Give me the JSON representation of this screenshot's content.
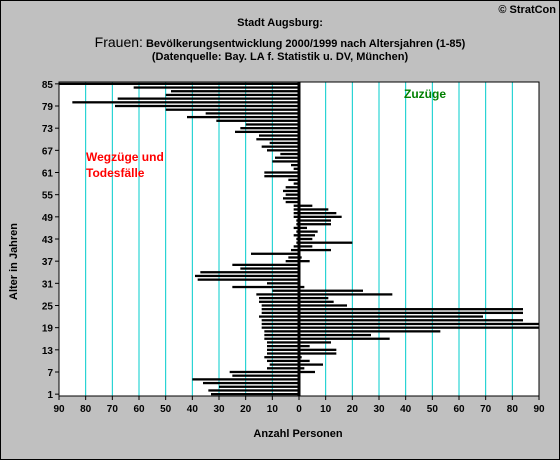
{
  "header": {
    "title_line1": "Stadt Augsburg:",
    "title_big": "Frauen:",
    "title_line2": " Bevölkerungsentwicklung  2000/1999  nach Altersjahren (1-85)",
    "title_line3": "(Datenquelle: Bay. LA f. Statistik u. DV, München)",
    "copyright": "© StratCon"
  },
  "annotations": {
    "left": "Wegzüge und Todesfälle",
    "right": "Zuzüge"
  },
  "colors": {
    "background": "#c0c0c0",
    "plot": "#ffffff",
    "gridline": "#00cccc",
    "bar": "#000000",
    "left_note": "#ff0000",
    "right_note": "#008000"
  },
  "chart_data": {
    "type": "bar",
    "orientation": "horizontal-diverging",
    "xlabel": "Anzahl Personen",
    "ylabel": "Alter in Jahren",
    "xlim": [
      -90,
      90
    ],
    "ylim": [
      1,
      85
    ],
    "x_ticks": [
      -90,
      -80,
      -70,
      -60,
      -50,
      -40,
      -30,
      -20,
      -10,
      0,
      10,
      20,
      30,
      40,
      50,
      60,
      70,
      80,
      90
    ],
    "x_tick_labels": [
      "90",
      "80",
      "70",
      "60",
      "50",
      "40",
      "30",
      "20",
      "10",
      "0",
      "10",
      "20",
      "30",
      "40",
      "50",
      "60",
      "70",
      "80",
      "90"
    ],
    "y_ticks": [
      1,
      7,
      13,
      19,
      25,
      31,
      37,
      43,
      49,
      55,
      61,
      67,
      73,
      79,
      85
    ],
    "grid": true,
    "ages": [
      1,
      2,
      3,
      4,
      5,
      6,
      7,
      8,
      9,
      10,
      11,
      12,
      13,
      14,
      15,
      16,
      17,
      18,
      19,
      20,
      21,
      22,
      23,
      24,
      25,
      26,
      27,
      28,
      29,
      30,
      31,
      32,
      33,
      34,
      35,
      36,
      37,
      38,
      39,
      40,
      41,
      42,
      43,
      44,
      45,
      46,
      47,
      48,
      49,
      50,
      51,
      52,
      53,
      54,
      55,
      56,
      57,
      58,
      59,
      60,
      61,
      62,
      63,
      64,
      65,
      66,
      67,
      68,
      69,
      70,
      71,
      72,
      73,
      74,
      75,
      76,
      77,
      78,
      79,
      80,
      81,
      82,
      83,
      84,
      85
    ],
    "series": [
      {
        "name": "Wegzüge und Todesfälle",
        "values": [
          -33,
          -34,
          -30,
          -36,
          -40,
          -25,
          -26,
          -12,
          -11,
          -12,
          -13,
          -12,
          -12,
          -12,
          -12,
          -13,
          -13,
          -13,
          -14,
          -14,
          -14,
          -15,
          -14,
          -14,
          -14,
          -15,
          -15,
          -16,
          -10,
          -25,
          -12,
          -38,
          -39,
          -37,
          -22,
          -25,
          -5,
          -4,
          -18,
          -3,
          -2,
          -1,
          -1,
          -2,
          -1,
          -2,
          -1,
          -1,
          -2,
          -2,
          -2,
          -2,
          -5,
          -6,
          -5,
          -6,
          -5,
          -2,
          -4,
          -13,
          -13,
          -2,
          -3,
          -10,
          -9,
          -7,
          -12,
          -14,
          -11,
          -16,
          -15,
          -24,
          -22,
          -20,
          -31,
          -42,
          -35,
          -50,
          -69,
          -85,
          -68,
          -50,
          -48,
          -62,
          -90
        ]
      },
      {
        "name": "Zuzüge",
        "values": [
          0,
          0,
          0,
          0,
          0,
          0,
          6,
          2,
          9,
          4,
          1,
          14,
          14,
          4,
          12,
          34,
          27,
          53,
          90,
          90,
          84,
          69,
          84,
          84,
          18,
          13,
          11,
          35,
          24,
          2,
          0,
          0,
          0,
          0,
          0,
          0,
          4,
          1,
          0,
          12,
          5,
          20,
          5,
          6,
          7,
          3,
          12,
          12,
          16,
          14,
          11,
          5,
          0,
          0,
          0,
          0,
          0,
          0,
          0,
          0,
          0,
          0,
          0,
          0,
          0,
          0,
          0,
          0,
          0,
          0,
          0,
          0,
          0,
          0,
          0,
          0,
          0,
          0,
          0,
          0,
          0,
          0,
          0,
          0,
          0
        ]
      }
    ]
  }
}
